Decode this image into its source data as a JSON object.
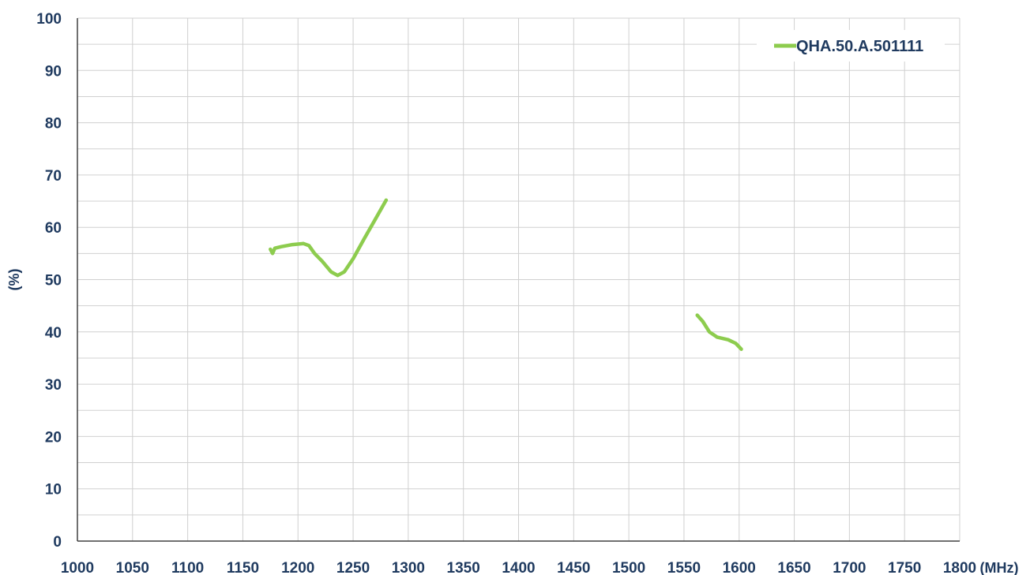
{
  "chart_data": {
    "type": "line",
    "title": "",
    "xlabel": "(MHz)",
    "ylabel": "(%)",
    "xlim": [
      1000,
      1800
    ],
    "ylim": [
      0,
      100
    ],
    "x_ticks": [
      1000,
      1050,
      1100,
      1150,
      1200,
      1250,
      1300,
      1350,
      1400,
      1450,
      1500,
      1550,
      1600,
      1650,
      1700,
      1750,
      1800
    ],
    "y_ticks": [
      0,
      10,
      20,
      30,
      40,
      50,
      60,
      70,
      80,
      90,
      100
    ],
    "grid": true,
    "legend_position": "top-right",
    "colors": {
      "series": "#8dcc4e",
      "grid": "#d0d0d0",
      "text": "#1f3a5f",
      "axis": "#404040"
    },
    "series": [
      {
        "name": "QHA.50.A.501111",
        "segments": [
          {
            "x": [
              1175,
              1177,
              1179,
              1185,
              1195,
              1205,
              1210,
              1215,
              1222,
              1230,
              1236,
              1242,
              1250,
              1260,
              1270,
              1280
            ],
            "y": [
              55.8,
              55.0,
              56.0,
              56.3,
              56.7,
              56.9,
              56.5,
              55.0,
              53.5,
              51.5,
              50.8,
              51.5,
              54.0,
              57.8,
              61.5,
              65.2
            ]
          },
          {
            "x": [
              1562,
              1567,
              1573,
              1580,
              1590,
              1597,
              1602
            ],
            "y": [
              43.2,
              42.0,
              40.0,
              39.0,
              38.5,
              37.8,
              36.7
            ]
          }
        ]
      }
    ]
  }
}
